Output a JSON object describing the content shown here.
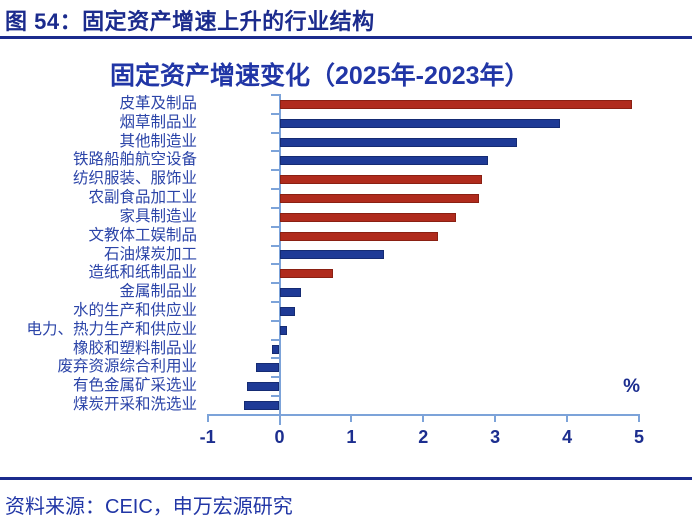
{
  "page": {
    "header_title": "图 54：固定资产增速上升的行业结构",
    "source_note": "资料来源：CEIC，申万宏源研究"
  },
  "chart_data": {
    "type": "bar",
    "orientation": "horizontal",
    "title": "固定资产增速变化（2025年-2023年）",
    "unit_label": "%",
    "xlabel": "%",
    "ylabel": "",
    "xlim": [
      -1,
      5
    ],
    "x_ticks": [
      -1,
      0,
      1,
      2,
      3,
      4,
      5
    ],
    "grid": false,
    "legend": "none",
    "categories": [
      "皮革及制品",
      "烟草制品业",
      "其他制造业",
      "铁路船舶航空设备",
      "纺织服装、服饰业",
      "农副食品加工业",
      "家具制造业",
      "文教体工娱制品",
      "石油煤炭加工",
      "造纸和纸制品业",
      "金属制品业",
      "水的生产和供应业",
      "电力、热力生产和供应业",
      "橡胶和塑料制品业",
      "废弃资源综合利用业",
      "有色金属矿采选业",
      "煤炭开采和洗选业"
    ],
    "values": [
      4.9,
      3.9,
      3.3,
      2.9,
      2.82,
      2.78,
      2.45,
      2.2,
      1.45,
      0.75,
      0.3,
      0.22,
      0.1,
      -0.1,
      -0.33,
      -0.45,
      -0.5
    ],
    "bar_colors": [
      "red",
      "blue",
      "blue",
      "blue",
      "red",
      "red",
      "red",
      "red",
      "blue",
      "red",
      "blue",
      "blue",
      "blue",
      "blue",
      "blue",
      "blue",
      "blue"
    ]
  },
  "colors": {
    "bar_red": "#B02B1D",
    "bar_red_border": "#8A2013",
    "bar_blue": "#1E3A96",
    "bar_blue_border": "#152B73",
    "axis": "#7CA3D9",
    "heading": "#1B2B8D",
    "chart_title": "#2136A6",
    "category_text": "#2B44A8",
    "tick_text": "#1C2E8F"
  }
}
